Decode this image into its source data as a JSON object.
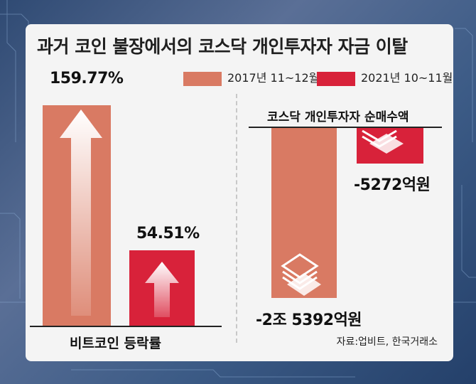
{
  "title": "과거 코인 불장에서의 코스닥 개인투자자 자금 이탈",
  "source": "자료:업비트, 한국거래소",
  "colors": {
    "series1": "#d97a63",
    "series2": "#d8223a"
  },
  "chart_data": [
    {
      "type": "bar",
      "categories": [
        "비트코인 등락률"
      ],
      "series": [
        {
          "name": "2017년 11~12월",
          "values": [
            159.77
          ],
          "label": "159.77%"
        },
        {
          "name": "2021년 10~11월",
          "values": [
            54.51
          ],
          "label": "54.51%"
        }
      ],
      "xlabel": "비트코인 등락률",
      "ylim": [
        0,
        170
      ],
      "legend": "top-right"
    },
    {
      "type": "bar",
      "categories": [
        "코스닥 개인투자자 순매수액"
      ],
      "series": [
        {
          "name": "2017년 11~12월",
          "values": [
            -25392
          ],
          "label": "-2조 5392억원"
        },
        {
          "name": "2021년 10~11월",
          "values": [
            -5272
          ],
          "label": "-5272억원"
        }
      ],
      "title": "코스닥 개인투자자 순매수액",
      "ylim": [
        -27000,
        0
      ]
    }
  ]
}
